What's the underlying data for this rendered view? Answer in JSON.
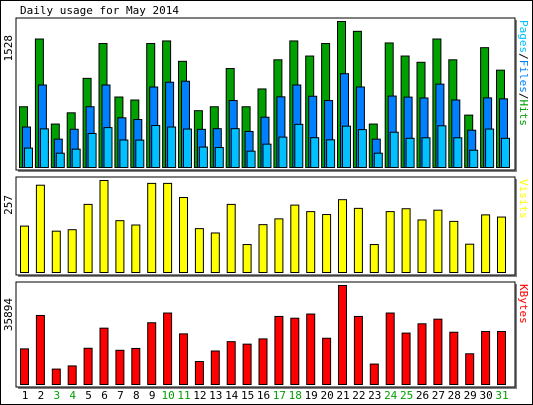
{
  "chart_data": [
    {
      "type": "bar",
      "title": "Daily usage for May 2014",
      "categories": [
        "1",
        "2",
        "3",
        "4",
        "5",
        "6",
        "7",
        "8",
        "9",
        "10",
        "11",
        "12",
        "13",
        "14",
        "15",
        "16",
        "17",
        "18",
        "19",
        "20",
        "21",
        "22",
        "23",
        "24",
        "25",
        "26",
        "27",
        "28",
        "29",
        "30",
        "31"
      ],
      "weekend_days": [
        "3",
        "4",
        "10",
        "11",
        "17",
        "18",
        "24",
        "25",
        "31"
      ],
      "ymax_label": "1528",
      "ylim": [
        0,
        1528
      ],
      "legend": [
        "Pages",
        "/",
        "Files",
        "/",
        "Hits"
      ],
      "series": [
        {
          "name": "Hits",
          "color": "#00a000",
          "values": [
            642,
            1346,
            462,
            579,
            937,
            1299,
            743,
            712,
            1299,
            1326,
            1114,
            601,
            642,
            1039,
            642,
            827,
            1130,
            1326,
            1169,
            1299,
            1528,
            1426,
            462,
            1305,
            1169,
            1104,
            1346,
            1130,
            555,
            1256,
            1022
          ]
        },
        {
          "name": "Files",
          "color": "#0080ff",
          "values": [
            431,
            868,
            305,
            408,
            642,
            868,
            527,
            509,
            847,
            897,
            907,
            407,
            414,
            706,
            385,
            533,
            745,
            868,
            751,
            706,
            985,
            847,
            305,
            753,
            742,
            733,
            877,
            712,
            398,
            734,
            724
          ]
        },
        {
          "name": "Pages",
          "color": "#00c0ff",
          "values": [
            212,
            412,
            159,
            201,
            364,
            425,
            296,
            295,
            447,
            431,
            410,
            223,
            218,
            414,
            180,
            253,
            326,
            459,
            320,
            298,
            440,
            404,
            159,
            377,
            314,
            319,
            444,
            319,
            190,
            410,
            314
          ]
        }
      ]
    },
    {
      "type": "bar",
      "ymax_label": "257",
      "ylim": [
        0,
        257
      ],
      "legend": [
        "Visits"
      ],
      "series": [
        {
          "name": "Visits",
          "color": "#ffff00",
          "values": [
            131,
            244,
            117,
            121,
            191,
            257,
            146,
            134,
            249,
            249,
            210,
            124,
            112,
            191,
            80,
            135,
            151,
            189,
            171,
            163,
            204,
            180,
            80,
            171,
            179,
            148,
            175,
            144,
            81,
            162,
            156
          ]
        }
      ]
    },
    {
      "type": "bar",
      "ymax_label": "35894",
      "ylim": [
        0,
        35894
      ],
      "legend": [
        "KBytes"
      ],
      "series": [
        {
          "name": "KBytes",
          "color": "#ff0000",
          "values": [
            13150,
            25140,
            5890,
            7030,
            13360,
            20580,
            12630,
            13300,
            22530,
            26010,
            18530,
            8600,
            12380,
            15740,
            14840,
            16730,
            24790,
            24150,
            25650,
            16960,
            35894,
            24790,
            7690,
            26010,
            18810,
            22150,
            23810,
            19120,
            11390,
            19380,
            19380
          ]
        }
      ]
    }
  ]
}
